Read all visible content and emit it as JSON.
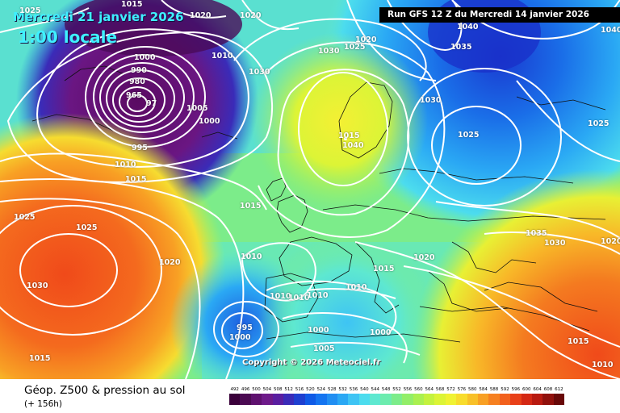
{
  "map": {
    "date_label": "Mercredi 21 janvier 2026",
    "time_label": "1:00 locale",
    "run_label": "Run GFS 12 Z du Mercredi 14 janvier 2026",
    "copyright": "Copyright © 2026 Meteociel.fr",
    "pressure_labels": [
      "1025",
      "1020",
      "1015",
      "1020",
      "1040",
      "1035",
      "1025",
      "1000",
      "990",
      "980",
      "965",
      "97",
      "1010",
      "1030",
      "1030",
      "1025",
      "1005",
      "1000",
      "995",
      "1010",
      "1015",
      "1025",
      "1025",
      "1030",
      "1020",
      "1015",
      "1035",
      "1030",
      "1020",
      "1015",
      "1010",
      "1010",
      "1010",
      "1010",
      "1015",
      "1020",
      "1010",
      "1010",
      "995",
      "1000",
      "1000",
      "1000",
      "1005",
      "1025",
      "1015",
      "1015",
      "1040",
      "1040",
      "1030",
      "1020"
    ]
  },
  "legend": {
    "title": "Géop. Z500 & pression au sol",
    "subtitle": "(+ 156h)",
    "scale_values": [
      "492",
      "496",
      "500",
      "504",
      "508",
      "512",
      "516",
      "520",
      "524",
      "528",
      "532",
      "536",
      "540",
      "544",
      "548",
      "552",
      "556",
      "560",
      "564",
      "568",
      "572",
      "576",
      "580",
      "584",
      "588",
      "592",
      "596",
      "600",
      "604",
      "608",
      "612"
    ],
    "scale_colors": [
      "#3a003a",
      "#4b0a52",
      "#5e106e",
      "#6e1a8a",
      "#5a1ea0",
      "#3a2bb8",
      "#1e3fd0",
      "#0f5ae6",
      "#1474f0",
      "#208ef2",
      "#2aa8f4",
      "#3ec4f4",
      "#4cdcee",
      "#5ee8d0",
      "#6cecae",
      "#7cec8a",
      "#92ee68",
      "#aaf050",
      "#c4f23e",
      "#dcf436",
      "#f0f232",
      "#f8dc2c",
      "#f8c028",
      "#f8a024",
      "#f68020",
      "#f2601c",
      "#e84018",
      "#d42814",
      "#b81a10",
      "#90100c",
      "#680808"
    ]
  }
}
